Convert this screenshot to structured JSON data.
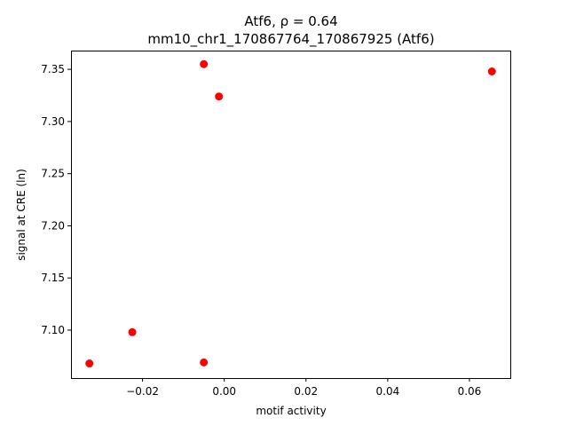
{
  "chart_data": {
    "type": "scatter",
    "title": "Atf6, ρ = 0.64",
    "subtitle": "mm10_chr1_170867764_170867925 (Atf6)",
    "xlabel": "motif activity",
    "ylabel": "signal at CRE (ln)",
    "xlim": [
      -0.0375,
      0.07
    ],
    "ylim": [
      7.054,
      7.368
    ],
    "xticks": [
      -0.02,
      0.0,
      0.02,
      0.04,
      0.06
    ],
    "xtick_labels": [
      "−0.02",
      "0.00",
      "0.02",
      "0.04",
      "0.06"
    ],
    "yticks": [
      7.1,
      7.15,
      7.2,
      7.25,
      7.3,
      7.35
    ],
    "ytick_labels": [
      "7.10",
      "7.15",
      "7.20",
      "7.25",
      "7.30",
      "7.35"
    ],
    "grid": false,
    "point_color": "#ff0000",
    "points": [
      {
        "x": -0.033,
        "y": 7.068
      },
      {
        "x": -0.0225,
        "y": 7.098
      },
      {
        "x": -0.005,
        "y": 7.069
      },
      {
        "x": -0.005,
        "y": 7.355
      },
      {
        "x": -0.0013,
        "y": 7.324
      },
      {
        "x": 0.0655,
        "y": 7.348
      }
    ]
  }
}
